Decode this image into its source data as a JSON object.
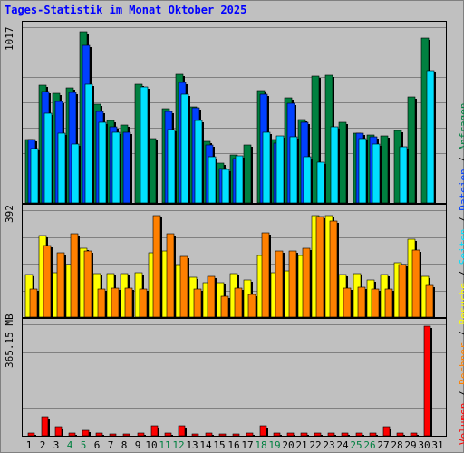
{
  "title": "Tages-Statistik im Monat Oktober 2025",
  "colors": {
    "anfragen": "#008040",
    "dateien": "#0040ff",
    "seiten": "#00e0ff",
    "besuche": "#ffff00",
    "rechner": "#ff8000",
    "volumen": "#ff0000",
    "weekend_label": "#008040",
    "weekday_label": "#000000",
    "background": "#c0c0c0"
  },
  "chart_data": [
    {
      "type": "bar",
      "ylabel_max": "1017",
      "ylim": [
        0,
        1017
      ],
      "grid": true,
      "categories": [
        "1",
        "2",
        "3",
        "4",
        "5",
        "6",
        "7",
        "8",
        "9",
        "10",
        "11",
        "12",
        "13",
        "14",
        "15",
        "16",
        "17",
        "18",
        "19",
        "20",
        "21",
        "22",
        "23",
        "24",
        "25",
        "26",
        "27",
        "28",
        "29",
        "30",
        "31"
      ],
      "weekend": [
        false,
        false,
        false,
        true,
        true,
        false,
        false,
        false,
        false,
        false,
        true,
        true,
        false,
        false,
        false,
        false,
        false,
        true,
        true,
        false,
        false,
        false,
        false,
        false,
        true,
        true,
        false,
        false,
        false,
        false,
        false
      ],
      "series": [
        {
          "name": "Anfragen",
          "values": [
            375,
            695,
            645,
            680,
            1010,
            585,
            485,
            460,
            700,
            380,
            555,
            760,
            570,
            365,
            235,
            285,
            345,
            665,
            375,
            620,
            495,
            750,
            755,
            475,
            410,
            400,
            395,
            430,
            625,
            975,
            0
          ]
        },
        {
          "name": "Dateien",
          "values": [
            375,
            660,
            600,
            655,
            930,
            540,
            450,
            420,
            0,
            0,
            540,
            710,
            560,
            345,
            205,
            260,
            0,
            640,
            355,
            590,
            475,
            0,
            0,
            0,
            410,
            390,
            0,
            0,
            0,
            0,
            0
          ]
        },
        {
          "name": "Seiten",
          "values": [
            320,
            530,
            410,
            350,
            700,
            475,
            415,
            0,
            685,
            0,
            435,
            640,
            485,
            275,
            200,
            280,
            0,
            415,
            395,
            390,
            275,
            240,
            450,
            0,
            380,
            350,
            0,
            330,
            0,
            780,
            0
          ]
        }
      ]
    },
    {
      "type": "bar",
      "ylabel_max": "392",
      "ylim": [
        0,
        392
      ],
      "grid": true,
      "categories": [
        "1",
        "2",
        "3",
        "4",
        "5",
        "6",
        "7",
        "8",
        "9",
        "10",
        "11",
        "12",
        "13",
        "14",
        "15",
        "16",
        "17",
        "18",
        "19",
        "20",
        "21",
        "22",
        "23",
        "24",
        "25",
        "26",
        "27",
        "28",
        "29",
        "30",
        "31"
      ],
      "series": [
        {
          "name": "Besuche",
          "values": [
            160,
            310,
            170,
            200,
            260,
            165,
            165,
            165,
            170,
            245,
            250,
            195,
            150,
            130,
            130,
            165,
            140,
            235,
            170,
            175,
            235,
            385,
            385,
            160,
            165,
            140,
            160,
            205,
            295,
            155,
            0
          ]
        },
        {
          "name": "Rechner",
          "values": [
            105,
            270,
            245,
            315,
            250,
            105,
            110,
            110,
            105,
            385,
            315,
            230,
            105,
            155,
            80,
            110,
            85,
            320,
            250,
            250,
            260,
            380,
            365,
            110,
            115,
            105,
            105,
            200,
            255,
            120,
            0
          ]
        }
      ]
    },
    {
      "type": "bar",
      "ylabel_max": "365.15 MB",
      "ylim": [
        0,
        365.15
      ],
      "grid": true,
      "categories": [
        "1",
        "2",
        "3",
        "4",
        "5",
        "6",
        "7",
        "8",
        "9",
        "10",
        "11",
        "12",
        "13",
        "14",
        "15",
        "16",
        "17",
        "18",
        "19",
        "20",
        "21",
        "22",
        "23",
        "24",
        "25",
        "26",
        "27",
        "28",
        "29",
        "30",
        "31"
      ],
      "series": [
        {
          "name": "Volumen",
          "values": [
            10,
            65,
            32,
            8,
            17,
            10,
            7,
            7,
            8,
            35,
            10,
            35,
            5,
            8,
            5,
            5,
            8,
            35,
            10,
            10,
            8,
            8,
            8,
            8,
            8,
            10,
            30,
            8,
            8,
            370,
            0
          ]
        }
      ]
    }
  ],
  "legend": [
    {
      "label": "Volumen",
      "color": "#ff0000"
    },
    {
      "label": " / ",
      "color": "#000000"
    },
    {
      "label": "Rechner",
      "color": "#ff8000"
    },
    {
      "label": " / ",
      "color": "#000000"
    },
    {
      "label": "Besuche",
      "color": "#ffff00"
    },
    {
      "label": " / ",
      "color": "#000000"
    },
    {
      "label": "Seiten",
      "color": "#00e0ff"
    },
    {
      "label": " / ",
      "color": "#000000"
    },
    {
      "label": "Dateien",
      "color": "#0040ff"
    },
    {
      "label": " / ",
      "color": "#000000"
    },
    {
      "label": "Anfragen",
      "color": "#008040"
    }
  ]
}
